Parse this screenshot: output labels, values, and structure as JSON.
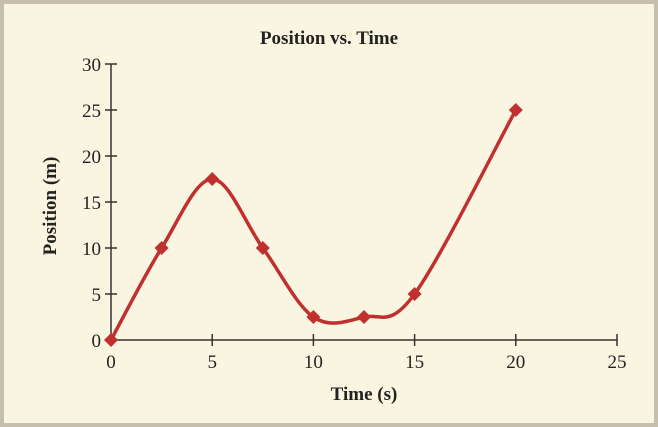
{
  "chart_data": {
    "type": "line",
    "title": "Position vs. Time",
    "xlabel": "Time (s)",
    "ylabel": "Position (m)",
    "xlim": [
      0,
      25
    ],
    "ylim": [
      0,
      30
    ],
    "xticks": [
      "0",
      "5",
      "10",
      "15",
      "20",
      "25"
    ],
    "yticks": [
      "0",
      "5",
      "10",
      "15",
      "20",
      "25",
      "30"
    ],
    "grid": false,
    "marker": "diamond",
    "smooth": true,
    "color": "#c0302f",
    "x": [
      0,
      2.5,
      5,
      7.5,
      10,
      12.5,
      15,
      20
    ],
    "y": [
      0,
      10,
      17.5,
      10,
      2.5,
      2.5,
      5,
      25
    ]
  }
}
